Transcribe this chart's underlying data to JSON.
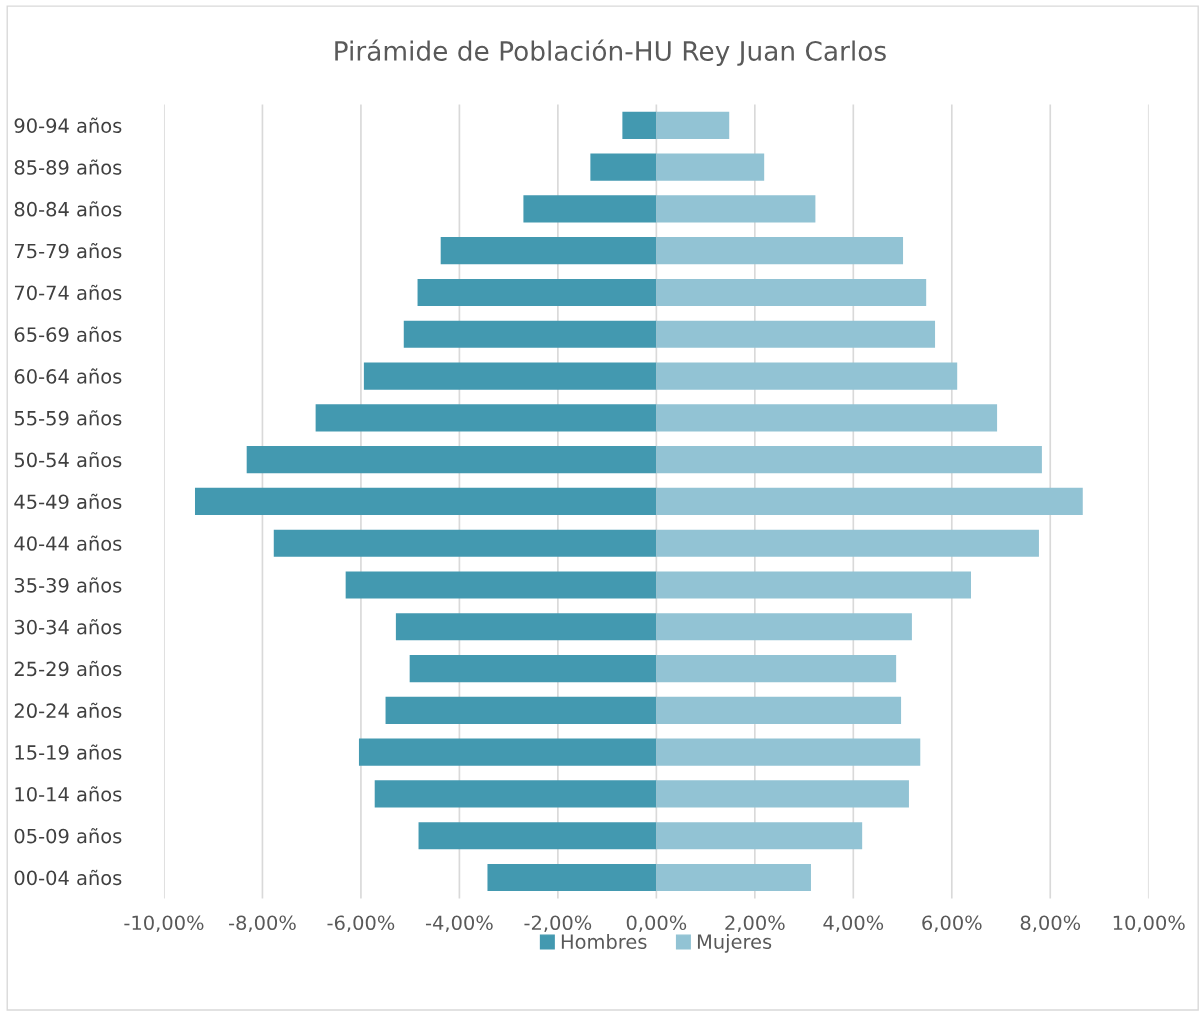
{
  "chart_data": {
    "type": "bar",
    "orientation": "horizontal",
    "title": "Pirámide de Población-HU Rey Juan Carlos",
    "categories": [
      "90-94 años",
      "85-89 años",
      "80-84 años",
      "75-79 años",
      "70-74 años",
      "65-69 años",
      "60-64 años",
      "55-59 años",
      "50-54 años",
      "45-49 años",
      "40-44 años",
      "35-39 años",
      "30-34 años",
      "25-29 años",
      "20-24 años",
      "15-19 años",
      "10-14 años",
      "05-09 años",
      "00-04 años"
    ],
    "series": [
      {
        "name": "Hombres",
        "color": "#4399b0",
        "values": [
          -0.69,
          -1.34,
          -2.7,
          -4.38,
          -4.85,
          -5.13,
          -5.94,
          -6.92,
          -8.32,
          -9.37,
          -7.77,
          -6.31,
          -5.29,
          -5.01,
          -5.5,
          -6.04,
          -5.72,
          -4.83,
          -3.43
        ]
      },
      {
        "name": "Mujeres",
        "color": "#92c3d4",
        "values": [
          1.48,
          2.19,
          3.23,
          5.01,
          5.48,
          5.66,
          6.11,
          6.92,
          7.83,
          8.66,
          7.77,
          6.39,
          5.19,
          4.87,
          4.97,
          5.36,
          5.13,
          4.18,
          3.14
        ]
      }
    ],
    "xlim": [
      -10,
      10
    ],
    "xticks": [
      {
        "value": -10,
        "label": "-10,00%"
      },
      {
        "value": -8,
        "label": "-8,00%"
      },
      {
        "value": -6,
        "label": "-6,00%"
      },
      {
        "value": -4,
        "label": "-4,00%"
      },
      {
        "value": -2,
        "label": "-2,00%"
      },
      {
        "value": 0,
        "label": "0,00%"
      },
      {
        "value": 2,
        "label": "2,00%"
      },
      {
        "value": 4,
        "label": "4,00%"
      },
      {
        "value": 6,
        "label": "6,00%"
      },
      {
        "value": 8,
        "label": "8,00%"
      },
      {
        "value": 10,
        "label": "10,00%"
      }
    ],
    "stacked": true,
    "grid": "x",
    "legend": "bottom"
  }
}
